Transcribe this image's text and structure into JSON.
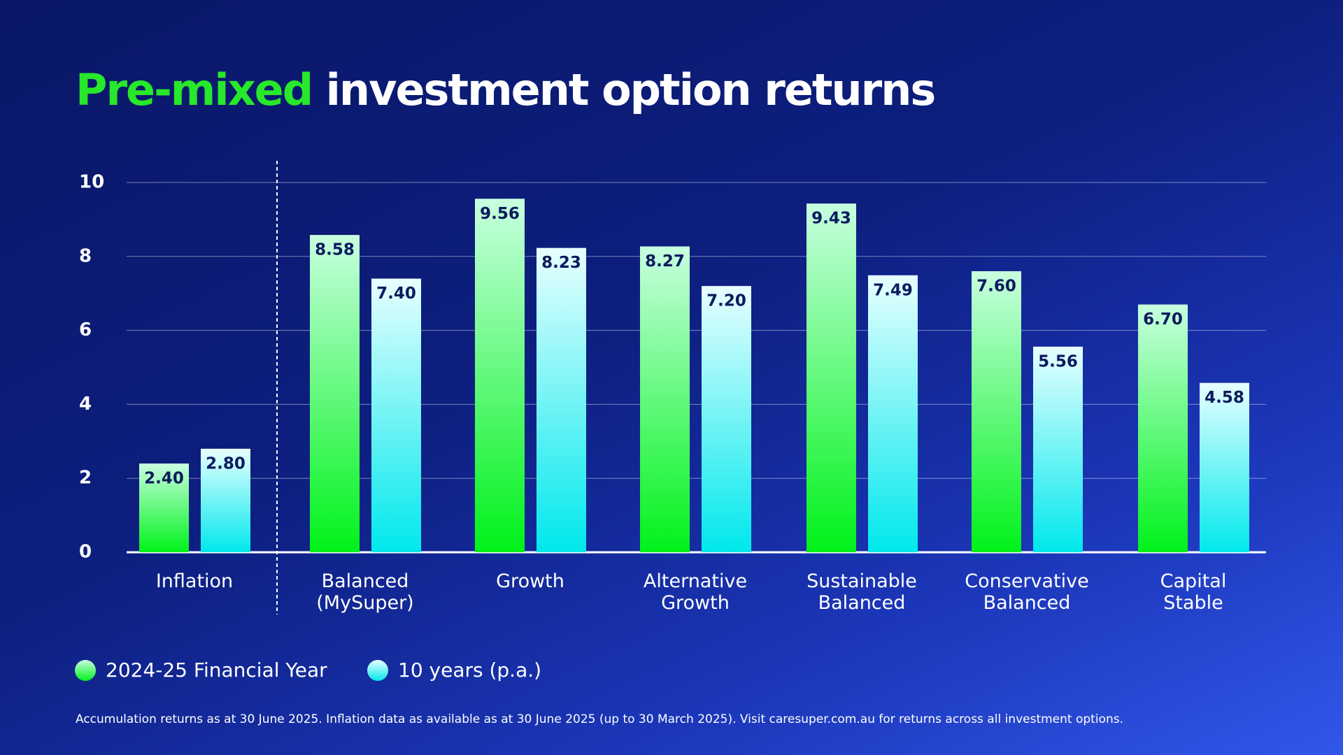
{
  "chart_data": {
    "type": "bar",
    "title_highlight": "Pre-mixed",
    "title": "investment option returns",
    "categories": [
      "Inflation",
      "Balanced (MySuper)",
      "Growth",
      "Alternative Growth",
      "Sustainable Balanced",
      "Conservative Balanced",
      "Capital Stable"
    ],
    "series": [
      {
        "name": "2024-25 Financial Year",
        "color": "#00f21a",
        "values": [
          2.4,
          8.58,
          9.56,
          8.27,
          9.43,
          7.6,
          6.7
        ],
        "value_labels": [
          "2.40",
          "8.58",
          "9.56",
          "8.27",
          "9.43",
          "7.60",
          "6.70"
        ]
      },
      {
        "name": "10 years (p.a.)",
        "color": "#00e8ec",
        "values": [
          2.8,
          7.4,
          8.23,
          7.2,
          7.49,
          5.56,
          4.58
        ],
        "value_labels": [
          "2.80",
          "7.40",
          "8.23",
          "7.20",
          "7.49",
          "5.56",
          "4.58"
        ]
      }
    ],
    "ylim": [
      0,
      10
    ],
    "yticks": [
      0,
      2,
      4,
      6,
      8,
      10
    ],
    "grid": true,
    "footnote": "Accumulation returns as at 30 June 2025. Inflation data as available as at 30 June 2025 (up to 30 March 2025).  Visit caresuper.com.au for returns across all investment options."
  }
}
